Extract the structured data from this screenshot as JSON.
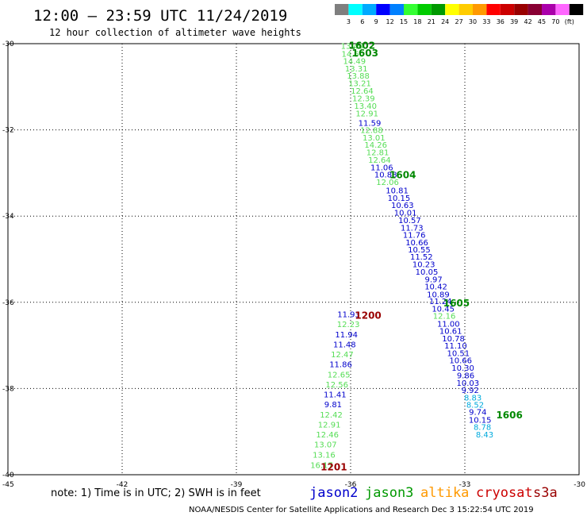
{
  "header": {
    "title": "12:00 — 23:59 UTC 11/24/2019",
    "subtitle": "12 hour collection of altimeter wave heights"
  },
  "scale": {
    "colors": [
      "#7f7f7f",
      "#00ffff",
      "#00aaff",
      "#0000ff",
      "#0080ff",
      "#33ff33",
      "#00cc00",
      "#009900",
      "#ffff00",
      "#ffcc00",
      "#ff9900",
      "#ff0000",
      "#cc0000",
      "#990000",
      "#880033",
      "#aa00aa",
      "#ff66ff",
      "#000000"
    ],
    "labels": [
      "3",
      "6",
      "9",
      "12",
      "15",
      "18",
      "21",
      "24",
      "27",
      "30",
      "33",
      "36",
      "39",
      "42",
      "45",
      "70",
      "(ft)"
    ]
  },
  "footer": {
    "note": "note: 1) Time is in UTC; 2) SWH is in feet",
    "credit": "NOAA/NESDIS Center for Satellite Applications and Research   Dec  3 15:22:54 UTC 2019",
    "satellites": [
      {
        "name": "jason2",
        "color": "#0000cc"
      },
      {
        "name": "jason3",
        "color": "#009900"
      },
      {
        "name": "altika",
        "color": "#ff9900"
      },
      {
        "name": "cryosat",
        "color": "#cc0000"
      },
      {
        "name": "s3a",
        "color": "#990000"
      }
    ]
  },
  "chart_data": {
    "type": "scatter",
    "xlim": [
      -45,
      -30
    ],
    "ylim": [
      -40,
      -30
    ],
    "x_ticks": [
      -45,
      -42,
      -39,
      -36,
      -33,
      -30
    ],
    "y_ticks": [
      -30,
      -32,
      -34,
      -36,
      -38,
      -40
    ],
    "x_tick_labels": [
      "-45",
      "-42",
      "-39",
      "-36",
      "-33",
      "-30"
    ],
    "y_tick_labels": [
      "-30",
      "-32",
      "-34",
      "-36",
      "-38",
      "-40"
    ],
    "grid": true,
    "series_colors": {
      "light_green": "#55dd55",
      "blue": "#0000cc",
      "cyan": "#00aadd",
      "time_green": "#008800",
      "time_red": "#990000"
    },
    "points": [
      {
        "x": -35.96,
        "y": -30.05,
        "v": "13.40",
        "c": "light_green"
      },
      {
        "x": -35.94,
        "y": -30.23,
        "v": "14.50",
        "c": "light_green"
      },
      {
        "x": -35.9,
        "y": -30.4,
        "v": "14.49",
        "c": "light_green"
      },
      {
        "x": -35.85,
        "y": -30.57,
        "v": "13.31",
        "c": "light_green"
      },
      {
        "x": -35.8,
        "y": -30.74,
        "v": "13.88",
        "c": "light_green"
      },
      {
        "x": -35.76,
        "y": -30.91,
        "v": "13.21",
        "c": "light_green"
      },
      {
        "x": -35.7,
        "y": -31.09,
        "v": "12.64",
        "c": "light_green"
      },
      {
        "x": -35.66,
        "y": -31.26,
        "v": "12.39",
        "c": "light_green"
      },
      {
        "x": -35.61,
        "y": -31.44,
        "v": "13.40",
        "c": "light_green"
      },
      {
        "x": -35.57,
        "y": -31.61,
        "v": "12.91",
        "c": "light_green"
      },
      {
        "x": -35.5,
        "y": -31.83,
        "v": "11.59",
        "c": "blue"
      },
      {
        "x": -35.45,
        "y": -32.0,
        "v": "12.88",
        "c": "light_green"
      },
      {
        "x": -35.39,
        "y": -32.17,
        "v": "13.01",
        "c": "light_green"
      },
      {
        "x": -35.34,
        "y": -32.34,
        "v": "14.26",
        "c": "light_green"
      },
      {
        "x": -35.29,
        "y": -32.51,
        "v": "12.81",
        "c": "light_green"
      },
      {
        "x": -35.24,
        "y": -32.69,
        "v": "12.64",
        "c": "light_green"
      },
      {
        "x": -35.18,
        "y": -32.86,
        "v": "11.06",
        "c": "blue"
      },
      {
        "x": -35.08,
        "y": -33.03,
        "v": "10.88",
        "c": "blue"
      },
      {
        "x": -35.03,
        "y": -33.2,
        "v": "12.06",
        "c": "light_green"
      },
      {
        "x": -34.78,
        "y": -33.4,
        "v": "10.81",
        "c": "blue"
      },
      {
        "x": -34.73,
        "y": -33.57,
        "v": "10.15",
        "c": "blue"
      },
      {
        "x": -34.64,
        "y": -33.74,
        "v": "10.63",
        "c": "blue"
      },
      {
        "x": -34.56,
        "y": -33.91,
        "v": "10.01",
        "c": "blue"
      },
      {
        "x": -34.45,
        "y": -34.09,
        "v": "10.57",
        "c": "blue"
      },
      {
        "x": -34.39,
        "y": -34.26,
        "v": "11.73",
        "c": "blue"
      },
      {
        "x": -34.33,
        "y": -34.43,
        "v": "11.76",
        "c": "blue"
      },
      {
        "x": -34.26,
        "y": -34.6,
        "v": "10.66",
        "c": "blue"
      },
      {
        "x": -34.2,
        "y": -34.77,
        "v": "10.55",
        "c": "blue"
      },
      {
        "x": -34.14,
        "y": -34.94,
        "v": "11.52",
        "c": "blue"
      },
      {
        "x": -34.08,
        "y": -35.11,
        "v": "10.23",
        "c": "blue"
      },
      {
        "x": -34.0,
        "y": -35.29,
        "v": "10.05",
        "c": "blue"
      },
      {
        "x": -33.82,
        "y": -35.46,
        "v": "9.97",
        "c": "blue"
      },
      {
        "x": -33.76,
        "y": -35.63,
        "v": "10.42",
        "c": "blue"
      },
      {
        "x": -33.7,
        "y": -35.81,
        "v": "10.89",
        "c": "blue"
      },
      {
        "x": -33.64,
        "y": -35.97,
        "v": "11.24",
        "c": "blue"
      },
      {
        "x": -33.57,
        "y": -36.14,
        "v": "10.45",
        "c": "blue"
      },
      {
        "x": -33.54,
        "y": -36.31,
        "v": "12.16",
        "c": "light_green"
      },
      {
        "x": -33.43,
        "y": -36.49,
        "v": "11.00",
        "c": "blue"
      },
      {
        "x": -33.37,
        "y": -36.66,
        "v": "10.61",
        "c": "blue"
      },
      {
        "x": -33.3,
        "y": -36.83,
        "v": "10.78",
        "c": "blue"
      },
      {
        "x": -33.24,
        "y": -37.0,
        "v": "11.10",
        "c": "blue"
      },
      {
        "x": -33.17,
        "y": -37.17,
        "v": "10.51",
        "c": "blue"
      },
      {
        "x": -33.11,
        "y": -37.34,
        "v": "10.66",
        "c": "blue"
      },
      {
        "x": -33.05,
        "y": -37.51,
        "v": "10.30",
        "c": "blue"
      },
      {
        "x": -32.98,
        "y": -37.69,
        "v": "9.86",
        "c": "blue"
      },
      {
        "x": -32.92,
        "y": -37.86,
        "v": "10.03",
        "c": "blue"
      },
      {
        "x": -32.86,
        "y": -38.03,
        "v": "9.92",
        "c": "blue"
      },
      {
        "x": -32.79,
        "y": -38.2,
        "v": "8.83",
        "c": "cyan"
      },
      {
        "x": -32.73,
        "y": -38.37,
        "v": "8.52",
        "c": "cyan"
      },
      {
        "x": -32.66,
        "y": -38.54,
        "v": "9.74",
        "c": "blue"
      },
      {
        "x": -32.6,
        "y": -38.72,
        "v": "10.15",
        "c": "blue"
      },
      {
        "x": -32.54,
        "y": -38.89,
        "v": "8.78",
        "c": "cyan"
      },
      {
        "x": -32.48,
        "y": -39.06,
        "v": "8.43",
        "c": "cyan"
      },
      {
        "x": -36.05,
        "y": -36.27,
        "v": "11.93",
        "c": "blue"
      },
      {
        "x": -36.06,
        "y": -36.5,
        "v": "12.23",
        "c": "light_green"
      },
      {
        "x": -36.11,
        "y": -36.74,
        "v": "11.94",
        "c": "blue"
      },
      {
        "x": -36.16,
        "y": -36.97,
        "v": "11.48",
        "c": "blue"
      },
      {
        "x": -36.22,
        "y": -37.2,
        "v": "12.47",
        "c": "light_green"
      },
      {
        "x": -36.26,
        "y": -37.43,
        "v": "11.86",
        "c": "blue"
      },
      {
        "x": -36.31,
        "y": -37.67,
        "v": "12.65",
        "c": "light_green"
      },
      {
        "x": -36.36,
        "y": -37.9,
        "v": "12.56",
        "c": "light_green"
      },
      {
        "x": -36.41,
        "y": -38.13,
        "v": "11.41",
        "c": "blue"
      },
      {
        "x": -36.46,
        "y": -38.36,
        "v": "9.81",
        "c": "blue"
      },
      {
        "x": -36.51,
        "y": -38.6,
        "v": "12.42",
        "c": "light_green"
      },
      {
        "x": -36.56,
        "y": -38.83,
        "v": "12.91",
        "c": "light_green"
      },
      {
        "x": -36.61,
        "y": -39.06,
        "v": "12.46",
        "c": "light_green"
      },
      {
        "x": -36.66,
        "y": -39.29,
        "v": "13.07",
        "c": "light_green"
      },
      {
        "x": -36.7,
        "y": -39.53,
        "v": "13.16",
        "c": "light_green"
      },
      {
        "x": -36.76,
        "y": -39.77,
        "v": "16.17",
        "c": "light_green"
      }
    ],
    "time_labels": [
      {
        "x": -35.7,
        "y": -30.03,
        "v": "1602",
        "c": "time_green"
      },
      {
        "x": -35.62,
        "y": -30.2,
        "v": "1603",
        "c": "time_green"
      },
      {
        "x": -34.63,
        "y": -33.03,
        "v": "1604",
        "c": "time_green"
      },
      {
        "x": -33.22,
        "y": -36.0,
        "v": "1605",
        "c": "time_green"
      },
      {
        "x": -31.83,
        "y": -38.6,
        "v": "1606",
        "c": "time_green"
      },
      {
        "x": -35.54,
        "y": -36.29,
        "v": "1200",
        "c": "time_red"
      },
      {
        "x": -36.44,
        "y": -39.81,
        "v": "1201",
        "c": "time_red"
      }
    ]
  }
}
